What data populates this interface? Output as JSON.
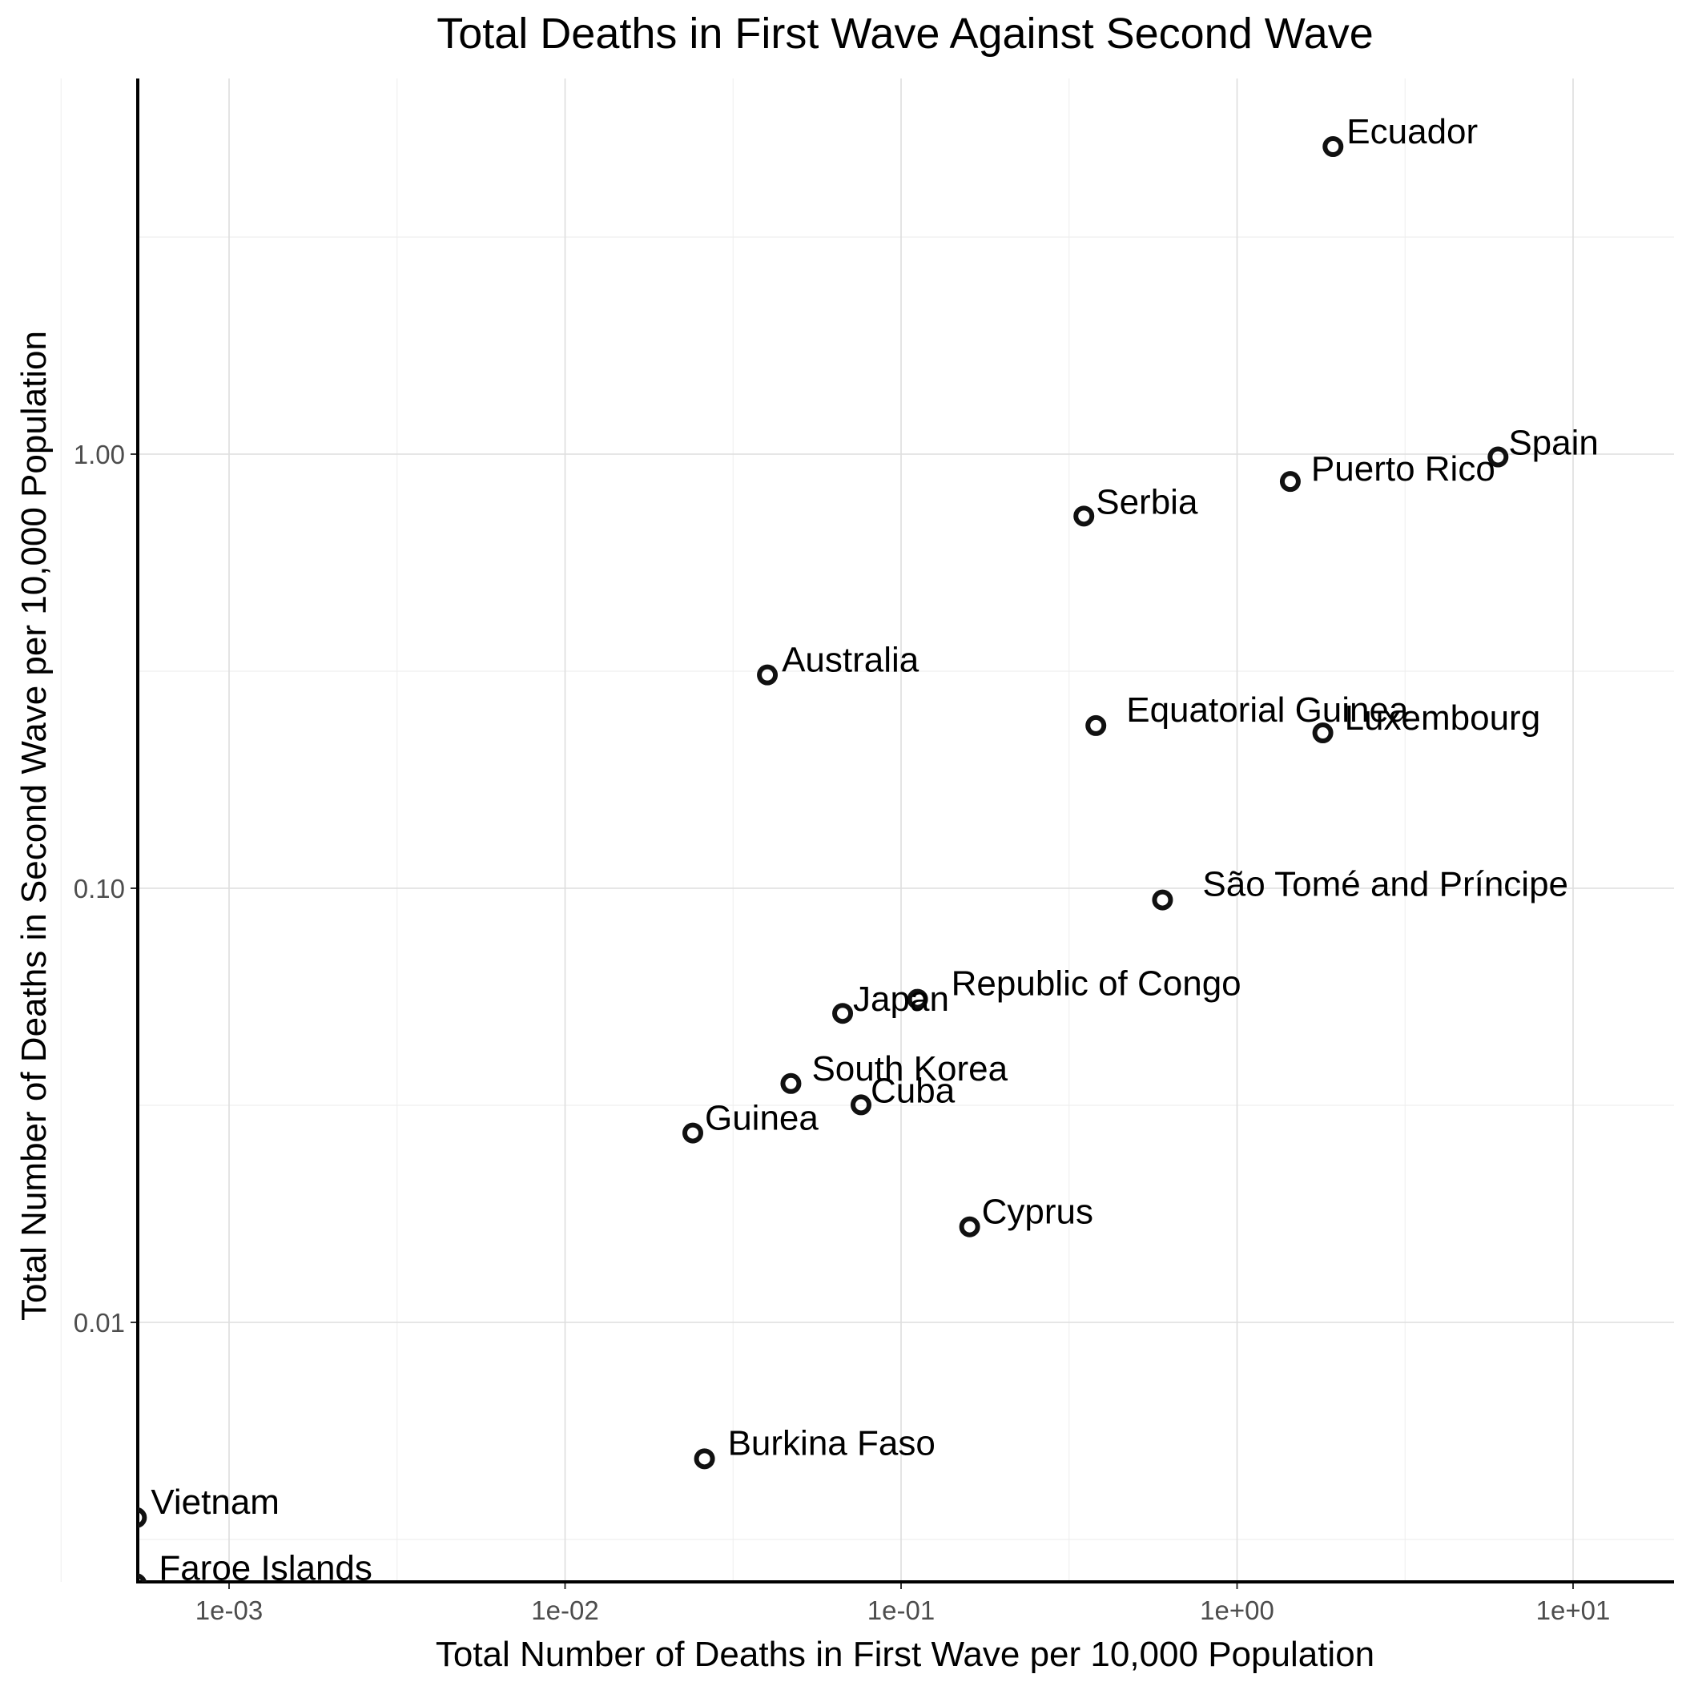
{
  "chart_data": {
    "type": "scatter",
    "title": "Total Deaths in First Wave Against Second Wave",
    "xlabel": "Total Number of Deaths in First Wave per 10,000 Population",
    "ylabel": "Total Number of Deaths in Second Wave per 10,000 Population",
    "x_scale": "log10",
    "y_scale": "log10",
    "xlim": [
      0.00052,
      20
    ],
    "ylim": [
      0.0025,
      6
    ],
    "x_ticks": [
      {
        "value": 0.001,
        "label": "1e-03"
      },
      {
        "value": 0.01,
        "label": "1e-02"
      },
      {
        "value": 0.1,
        "label": "1e-01"
      },
      {
        "value": 1,
        "label": "1e+00"
      },
      {
        "value": 10,
        "label": "1e+01"
      }
    ],
    "y_ticks": [
      {
        "value": 0.01,
        "label": "0.01"
      },
      {
        "value": 0.1,
        "label": "0.10"
      },
      {
        "value": 1,
        "label": "1.00"
      }
    ],
    "grid": true,
    "legend": "none",
    "points": [
      {
        "label": "Ecuador",
        "x": 1.93,
        "y": 5.11
      },
      {
        "label": "Spain",
        "x": 5.98,
        "y": 0.985
      },
      {
        "label": "Puerto Rico",
        "x": 1.44,
        "y": 0.865
      },
      {
        "label": "Serbia",
        "x": 0.35,
        "y": 0.72
      },
      {
        "label": "Australia",
        "x": 0.04,
        "y": 0.31
      },
      {
        "label": "Equatorial Guinea",
        "x": 0.38,
        "y": 0.237
      },
      {
        "label": "Luxembourg",
        "x": 1.8,
        "y": 0.228
      },
      {
        "label": "São Tomé and Príncipe",
        "x": 0.6,
        "y": 0.094
      },
      {
        "label": "Republic of Congo",
        "x": 0.112,
        "y": 0.0555
      },
      {
        "label": "Japan",
        "x": 0.067,
        "y": 0.0515
      },
      {
        "label": "South Korea",
        "x": 0.047,
        "y": 0.0355
      },
      {
        "label": "Cuba",
        "x": 0.076,
        "y": 0.0317
      },
      {
        "label": "Guinea",
        "x": 0.024,
        "y": 0.0273
      },
      {
        "label": "Cyprus",
        "x": 0.16,
        "y": 0.0166
      },
      {
        "label": "Burkina Faso",
        "x": 0.026,
        "y": 0.00485
      },
      {
        "label": "Vietnam",
        "x": 0.00053,
        "y": 0.00355
      },
      {
        "label": "Faroe Islands",
        "x": 0.00053,
        "y": 0.0025
      }
    ]
  }
}
